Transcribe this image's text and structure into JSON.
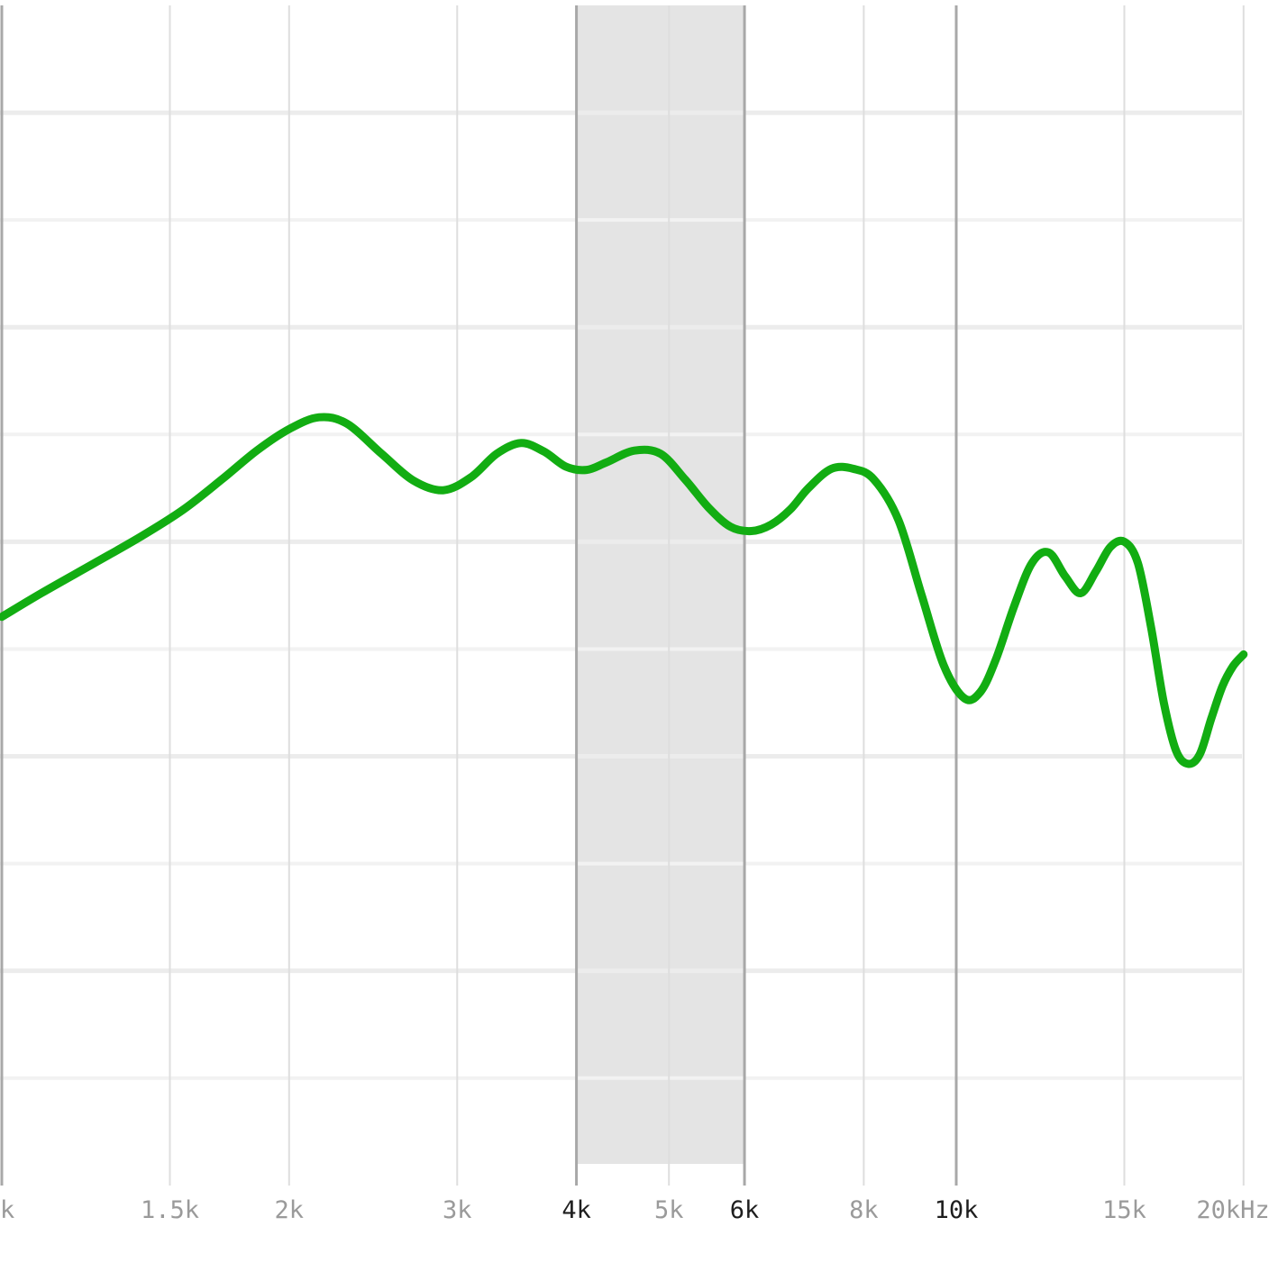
{
  "chart_data": {
    "type": "line",
    "xscale": "log",
    "xlim": [
      1000,
      21000
    ],
    "x_ticks": [
      {
        "value": 1000,
        "label": "k",
        "major": true,
        "dark": false
      },
      {
        "value": 1500,
        "label": "1.5k",
        "major": false,
        "dark": false
      },
      {
        "value": 2000,
        "label": "2k",
        "major": false,
        "dark": false
      },
      {
        "value": 3000,
        "label": "3k",
        "major": false,
        "dark": false
      },
      {
        "value": 4000,
        "label": "4k",
        "major": true,
        "dark": true
      },
      {
        "value": 5000,
        "label": "5k",
        "major": false,
        "dark": false
      },
      {
        "value": 6000,
        "label": "6k",
        "major": true,
        "dark": true
      },
      {
        "value": 8000,
        "label": "8k",
        "major": false,
        "dark": false
      },
      {
        "value": 10000,
        "label": "10k",
        "major": true,
        "dark": true
      },
      {
        "value": 15000,
        "label": "15k",
        "major": false,
        "dark": false
      },
      {
        "value": 20000,
        "label": "20kHz",
        "major": false,
        "dark": false
      }
    ],
    "highlight_band": [
      4000,
      6000
    ],
    "ylim": [
      -48,
      60
    ],
    "y_gridlines": [
      50,
      40,
      30,
      20,
      10,
      0,
      -10,
      -20,
      -30,
      -40
    ],
    "y_major_gridlines": [
      50,
      30,
      10,
      -10,
      -30
    ],
    "series": [
      {
        "x": [
          1000,
          1100,
          1250,
          1400,
          1550,
          1700,
          1850,
          2000,
          2150,
          2300,
          2500,
          2700,
          2900,
          3100,
          3300,
          3500,
          3700,
          3900,
          4100,
          4300,
          4600,
          4900,
          5200,
          5500,
          5800,
          6100,
          6400,
          6700,
          7000,
          7400,
          7800,
          8200,
          8700,
          9200,
          9700,
          10200,
          10600,
          11000,
          11500,
          12000,
          12500,
          13000,
          13500,
          14000,
          14500,
          15000,
          15500,
          16000,
          16500,
          17000,
          17500,
          18000,
          18500,
          19000,
          19500,
          20000
        ],
        "y": [
          3.0,
          5.2,
          8.0,
          10.5,
          13.0,
          15.8,
          18.5,
          20.5,
          21.6,
          21.0,
          18.2,
          15.7,
          14.8,
          16.0,
          18.2,
          19.2,
          18.4,
          17.0,
          16.7,
          17.4,
          18.5,
          18.2,
          15.8,
          13.2,
          11.4,
          11.0,
          11.6,
          13.0,
          15.0,
          16.8,
          16.8,
          15.8,
          12.0,
          5.0,
          -1.5,
          -4.6,
          -4.0,
          -1.0,
          4.0,
          8.0,
          9.0,
          6.8,
          5.2,
          7.2,
          9.5,
          10.0,
          8.0,
          2.0,
          -5.0,
          -9.5,
          -10.7,
          -9.8,
          -6.5,
          -3.5,
          -1.6,
          -0.5
        ],
        "color": "#12ad12"
      }
    ]
  }
}
